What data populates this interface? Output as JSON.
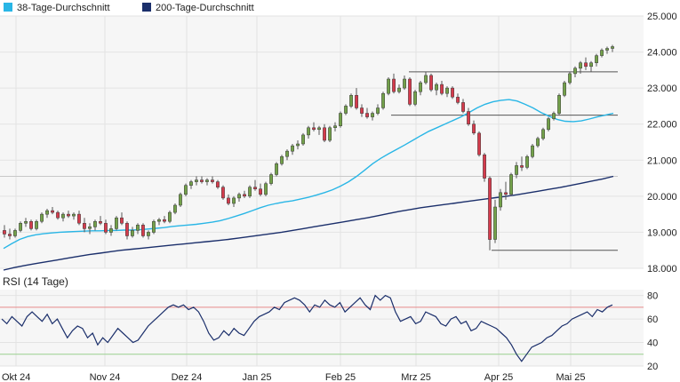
{
  "legend": [
    {
      "label": "38-Tage-Durchschnitt",
      "color": "#29b6e6"
    },
    {
      "label": "200-Tage-Durchschnitt",
      "color": "#1b2f6b"
    }
  ],
  "rsi_title": "RSI (14 Tage)",
  "x_axis_labels": [
    "Okt 24",
    "Nov 24",
    "Dez 24",
    "Jan 25",
    "Feb 25",
    "Mrz 25",
    "Apr 25",
    "Mai 25"
  ],
  "colors": {
    "up": "#73a14a",
    "down": "#d53b4c",
    "grid": "#e3e3e3",
    "panel_bg": "#f6f6f6",
    "rsi_line": "#1b2f6b",
    "rsi_high": "#e58a8a",
    "rsi_low": "#9ad08e"
  },
  "chart_data": [
    {
      "type": "candlestick",
      "title": "",
      "y_ticks": [
        "25.000",
        "24.000",
        "23.000",
        "22.000",
        "21.000",
        "20.000",
        "19.000",
        "18.000"
      ],
      "ylim": [
        18000,
        25000
      ],
      "x_category_labels": [
        "Okt 24",
        "Nov 24",
        "Dez 24",
        "Jan 25",
        "Feb 25",
        "Mrz 25",
        "Apr 25",
        "Mai 25"
      ],
      "horizontal_levels": [
        23450,
        22250,
        20550,
        18500
      ],
      "candles": [
        [
          19.05,
          19.2,
          18.85,
          18.95
        ],
        [
          18.95,
          19.1,
          18.8,
          18.9
        ],
        [
          18.9,
          19.1,
          18.85,
          19.05
        ],
        [
          19.05,
          19.3,
          19.0,
          19.25
        ],
        [
          19.25,
          19.4,
          19.15,
          19.3
        ],
        [
          19.3,
          19.35,
          19.05,
          19.1
        ],
        [
          19.1,
          19.35,
          19.05,
          19.3
        ],
        [
          19.3,
          19.55,
          19.25,
          19.5
        ],
        [
          19.5,
          19.65,
          19.4,
          19.6
        ],
        [
          19.6,
          19.7,
          19.5,
          19.55
        ],
        [
          19.55,
          19.6,
          19.35,
          19.4
        ],
        [
          19.4,
          19.55,
          19.3,
          19.5
        ],
        [
          19.5,
          19.6,
          19.4,
          19.45
        ],
        [
          19.45,
          19.55,
          19.35,
          19.5
        ],
        [
          19.5,
          19.6,
          19.2,
          19.25
        ],
        [
          19.25,
          19.4,
          19.0,
          19.1
        ],
        [
          19.1,
          19.25,
          18.95,
          19.15
        ],
        [
          19.15,
          19.35,
          19.05,
          19.3
        ],
        [
          19.3,
          19.45,
          19.2,
          19.25
        ],
        [
          19.25,
          19.35,
          18.95,
          19.0
        ],
        [
          19.0,
          19.2,
          18.9,
          19.1
        ],
        [
          19.1,
          19.45,
          19.05,
          19.4
        ],
        [
          19.4,
          19.55,
          19.2,
          19.25
        ],
        [
          19.25,
          19.3,
          18.8,
          18.9
        ],
        [
          18.9,
          19.15,
          18.85,
          19.05
        ],
        [
          19.05,
          19.25,
          18.95,
          19.2
        ],
        [
          19.2,
          19.25,
          18.85,
          18.9
        ],
        [
          18.9,
          19.05,
          18.8,
          19.0
        ],
        [
          19.0,
          19.35,
          18.95,
          19.3
        ],
        [
          19.3,
          19.4,
          19.2,
          19.35
        ],
        [
          19.35,
          19.45,
          19.25,
          19.3
        ],
        [
          19.3,
          19.6,
          19.25,
          19.55
        ],
        [
          19.55,
          19.8,
          19.5,
          19.75
        ],
        [
          19.75,
          20.1,
          19.7,
          20.05
        ],
        [
          20.05,
          20.35,
          20.0,
          20.3
        ],
        [
          20.3,
          20.45,
          20.2,
          20.4
        ],
        [
          20.4,
          20.55,
          20.3,
          20.45
        ],
        [
          20.45,
          20.55,
          20.35,
          20.4
        ],
        [
          20.4,
          20.5,
          20.3,
          20.45
        ],
        [
          20.45,
          20.55,
          20.35,
          20.4
        ],
        [
          20.4,
          20.45,
          20.2,
          20.25
        ],
        [
          20.25,
          20.3,
          19.9,
          19.95
        ],
        [
          19.95,
          20.05,
          19.75,
          19.8
        ],
        [
          19.8,
          20.0,
          19.7,
          19.95
        ],
        [
          19.95,
          20.1,
          19.85,
          20.05
        ],
        [
          20.05,
          20.15,
          19.95,
          20.0
        ],
        [
          20.0,
          20.3,
          19.95,
          20.25
        ],
        [
          20.25,
          20.45,
          20.15,
          20.2
        ],
        [
          20.2,
          20.35,
          20.0,
          20.05
        ],
        [
          20.05,
          20.4,
          20.0,
          20.35
        ],
        [
          20.35,
          20.65,
          20.3,
          20.6
        ],
        [
          20.6,
          20.95,
          20.55,
          20.9
        ],
        [
          20.9,
          21.15,
          20.85,
          21.1
        ],
        [
          21.1,
          21.3,
          21.0,
          21.25
        ],
        [
          21.25,
          21.45,
          21.15,
          21.4
        ],
        [
          21.4,
          21.55,
          21.3,
          21.45
        ],
        [
          21.45,
          21.75,
          21.4,
          21.7
        ],
        [
          21.7,
          21.95,
          21.6,
          21.9
        ],
        [
          21.9,
          22.05,
          21.8,
          21.85
        ],
        [
          21.85,
          21.95,
          21.7,
          21.9
        ],
        [
          21.9,
          22.0,
          21.5,
          21.55
        ],
        [
          21.55,
          21.95,
          21.5,
          21.9
        ],
        [
          21.9,
          22.05,
          21.8,
          21.95
        ],
        [
          21.95,
          22.35,
          21.9,
          22.3
        ],
        [
          22.3,
          22.55,
          22.25,
          22.5
        ],
        [
          22.5,
          22.85,
          22.45,
          22.8
        ],
        [
          22.8,
          23.0,
          22.4,
          22.45
        ],
        [
          22.45,
          22.55,
          22.2,
          22.3
        ],
        [
          22.3,
          22.45,
          22.15,
          22.2
        ],
        [
          22.2,
          22.35,
          22.1,
          22.3
        ],
        [
          22.3,
          22.55,
          22.25,
          22.45
        ],
        [
          22.45,
          22.9,
          22.4,
          22.85
        ],
        [
          22.85,
          23.3,
          22.8,
          23.25
        ],
        [
          23.25,
          23.4,
          22.85,
          22.9
        ],
        [
          22.9,
          23.1,
          22.85,
          23.0
        ],
        [
          23.0,
          23.35,
          22.95,
          23.25
        ],
        [
          23.25,
          23.3,
          22.5,
          22.55
        ],
        [
          22.55,
          22.95,
          22.5,
          22.9
        ],
        [
          22.9,
          23.2,
          22.8,
          23.15
        ],
        [
          23.15,
          23.45,
          23.1,
          23.35
        ],
        [
          23.35,
          23.4,
          22.9,
          22.95
        ],
        [
          22.95,
          23.15,
          22.8,
          23.1
        ],
        [
          23.1,
          23.2,
          22.8,
          22.85
        ],
        [
          22.85,
          23.05,
          22.75,
          23.0
        ],
        [
          23.0,
          23.05,
          22.7,
          22.75
        ],
        [
          22.75,
          22.85,
          22.55,
          22.6
        ],
        [
          22.6,
          22.7,
          22.3,
          22.35
        ],
        [
          22.35,
          22.45,
          21.95,
          22.0
        ],
        [
          22.0,
          22.1,
          21.7,
          21.75
        ],
        [
          21.75,
          21.8,
          21.1,
          21.15
        ],
        [
          21.15,
          21.2,
          20.4,
          20.5
        ],
        [
          20.5,
          20.55,
          18.5,
          18.8
        ],
        [
          18.8,
          19.9,
          18.7,
          19.7
        ],
        [
          19.7,
          20.2,
          19.6,
          20.1
        ],
        [
          20.1,
          20.4,
          19.9,
          20.05
        ],
        [
          20.05,
          20.65,
          20.0,
          20.6
        ],
        [
          20.6,
          20.95,
          20.5,
          20.85
        ],
        [
          20.85,
          21.1,
          20.7,
          20.8
        ],
        [
          20.8,
          21.15,
          20.75,
          21.1
        ],
        [
          21.1,
          21.45,
          21.05,
          21.4
        ],
        [
          21.4,
          21.65,
          21.35,
          21.6
        ],
        [
          21.6,
          21.9,
          21.55,
          21.85
        ],
        [
          21.85,
          22.2,
          21.8,
          22.15
        ],
        [
          22.15,
          22.35,
          22.1,
          22.3
        ],
        [
          22.3,
          22.85,
          22.25,
          22.8
        ],
        [
          22.8,
          23.2,
          22.75,
          23.15
        ],
        [
          23.15,
          23.45,
          23.1,
          23.4
        ],
        [
          23.4,
          23.6,
          23.3,
          23.55
        ],
        [
          23.55,
          23.75,
          23.4,
          23.7
        ],
        [
          23.7,
          23.85,
          23.5,
          23.6
        ],
        [
          23.6,
          23.75,
          23.45,
          23.7
        ],
        [
          23.7,
          23.95,
          23.6,
          23.9
        ],
        [
          23.9,
          24.1,
          23.85,
          24.05
        ],
        [
          24.05,
          24.15,
          23.95,
          24.1
        ],
        [
          24.1,
          24.2,
          24.0,
          24.15
        ]
      ],
      "series": [
        {
          "name": "38-Tage-Durchschnitt",
          "values": [
            18.55,
            18.68,
            18.8,
            18.88,
            18.93,
            18.96,
            18.98,
            19.0,
            19.01,
            19.02,
            19.03,
            19.04,
            19.04,
            19.05,
            19.05,
            19.06,
            19.06,
            19.07,
            19.09,
            19.11,
            19.13,
            19.16,
            19.18,
            19.2,
            19.22,
            19.25,
            19.28,
            19.32,
            19.38,
            19.45,
            19.52,
            19.6,
            19.68,
            19.75,
            19.8,
            19.84,
            19.87,
            19.92,
            19.97,
            20.03,
            20.1,
            20.18,
            20.28,
            20.4,
            20.55,
            20.72,
            20.9,
            21.05,
            21.18,
            21.3,
            21.42,
            21.55,
            21.68,
            21.8,
            21.9,
            22.0,
            22.1,
            22.2,
            22.32,
            22.45,
            22.55,
            22.62,
            22.66,
            22.68,
            22.64,
            22.55,
            22.45,
            22.32,
            22.22,
            22.13,
            22.08,
            22.07,
            22.09,
            22.14,
            22.2,
            22.25,
            22.3
          ]
        },
        {
          "name": "200-Tage-Durchschnitt",
          "values": [
            17.95,
            18.02,
            18.08,
            18.13,
            18.18,
            18.23,
            18.28,
            18.33,
            18.38,
            18.42,
            18.46,
            18.5,
            18.53,
            18.56,
            18.59,
            18.62,
            18.65,
            18.68,
            18.71,
            18.74,
            18.77,
            18.8,
            18.84,
            18.88,
            18.92,
            18.96,
            19.0,
            19.05,
            19.1,
            19.15,
            19.2,
            19.25,
            19.3,
            19.35,
            19.4,
            19.46,
            19.52,
            19.58,
            19.63,
            19.68,
            19.72,
            19.76,
            19.8,
            19.84,
            19.88,
            19.92,
            19.96,
            20.0,
            20.04,
            20.09,
            20.14,
            20.19,
            20.24,
            20.3,
            20.36,
            20.42,
            20.48,
            20.55
          ]
        }
      ]
    },
    {
      "type": "line",
      "title": "RSI (14 Tage)",
      "y_ticks": [
        "80",
        "60",
        "40",
        "20"
      ],
      "ylim": [
        20,
        85
      ],
      "reference_lines": [
        70,
        30
      ],
      "series": [
        {
          "name": "",
          "values": [
            60,
            56,
            62,
            58,
            54,
            62,
            66,
            62,
            58,
            64,
            56,
            60,
            52,
            44,
            50,
            54,
            52,
            44,
            48,
            38,
            44,
            40,
            46,
            52,
            48,
            44,
            40,
            42,
            48,
            54,
            58,
            62,
            66,
            70,
            72,
            70,
            72,
            68,
            70,
            66,
            58,
            48,
            42,
            44,
            50,
            46,
            52,
            48,
            46,
            52,
            58,
            62,
            64,
            66,
            70,
            68,
            74,
            76,
            78,
            76,
            72,
            66,
            72,
            70,
            76,
            72,
            70,
            74,
            66,
            70,
            74,
            78,
            72,
            68,
            80,
            76,
            80,
            78,
            66,
            58,
            60,
            62,
            56,
            58,
            66,
            64,
            62,
            56,
            54,
            60,
            62,
            56,
            58,
            50,
            52,
            58,
            56,
            54,
            52,
            48,
            44,
            38,
            30,
            24,
            30,
            36,
            38,
            40,
            44,
            46,
            50,
            54,
            56,
            60,
            62,
            64,
            66,
            62,
            68,
            66,
            70,
            72
          ]
        }
      ]
    }
  ]
}
